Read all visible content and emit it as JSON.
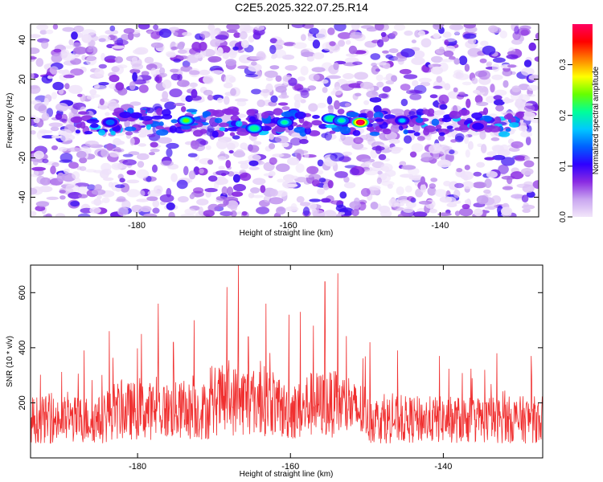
{
  "figure": {
    "title": "C2E5.2025.322.07.25.R14"
  },
  "chart_data": [
    {
      "type": "heatmap",
      "title": "C2E5.2025.322.07.25.R14",
      "xlabel": "Height of straight line (km)",
      "ylabel": "Frequency (Hz)",
      "xlim": [
        -194,
        -127
      ],
      "ylim": [
        -50,
        48
      ],
      "x_ticks": [
        -180,
        -160,
        -140
      ],
      "y_ticks": [
        -40,
        -20,
        0,
        20,
        40
      ],
      "colorbar": {
        "label": "Normalized spectral amplitude",
        "range": [
          0,
          0.38
        ],
        "ticks": [
          0.0,
          0.1,
          0.2,
          0.3
        ],
        "colormap": [
          "#f2e6fa",
          "#c9a6f0",
          "#8a2be2",
          "#2e00ff",
          "#0060ff",
          "#00c8ff",
          "#00ff99",
          "#66ff00",
          "#ffff00",
          "#ff8000",
          "#ff0000",
          "#ff0060"
        ]
      },
      "ridge": {
        "center_frequency": -2,
        "x_range": [
          -188,
          -129
        ],
        "hotspots": [
          {
            "x": -150.5,
            "y": -2,
            "value": 0.38
          },
          {
            "x": -173.5,
            "y": -1,
            "value": 0.24
          },
          {
            "x": -164.5,
            "y": -5,
            "value": 0.22
          },
          {
            "x": -160.5,
            "y": -2,
            "value": 0.2
          },
          {
            "x": -154.5,
            "y": 0,
            "value": 0.22
          },
          {
            "x": -153.0,
            "y": -1,
            "value": 0.21
          },
          {
            "x": -145.0,
            "y": -1,
            "value": 0.16
          },
          {
            "x": -183.5,
            "y": -2,
            "value": 0.15
          },
          {
            "x": -135.0,
            "y": -4,
            "value": 0.12
          }
        ]
      }
    },
    {
      "type": "line",
      "xlabel": "Height of straight line (km)",
      "ylabel": "SNR (10 * v/v)",
      "xlim": [
        -194,
        -127
      ],
      "ylim": [
        0,
        700
      ],
      "x_ticks": [
        -180,
        -160,
        -140
      ],
      "y_ticks": [
        200,
        400,
        600
      ],
      "color": "#f03030",
      "baseline": 150,
      "peaks": [
        {
          "x": -166.8,
          "y": 700
        },
        {
          "x": -153.8,
          "y": 670
        },
        {
          "x": -155.5,
          "y": 640
        },
        {
          "x": -168.3,
          "y": 620
        },
        {
          "x": -177.3,
          "y": 560
        },
        {
          "x": -163.2,
          "y": 560
        },
        {
          "x": -158.7,
          "y": 530
        },
        {
          "x": -160.2,
          "y": 520
        },
        {
          "x": -172.6,
          "y": 500
        },
        {
          "x": -157.0,
          "y": 480
        },
        {
          "x": -183.7,
          "y": 460
        },
        {
          "x": -179.5,
          "y": 450
        },
        {
          "x": -175.3,
          "y": 420
        },
        {
          "x": -149.6,
          "y": 420
        },
        {
          "x": -165.5,
          "y": 440
        },
        {
          "x": -146.0,
          "y": 390
        },
        {
          "x": -140.5,
          "y": 370
        },
        {
          "x": -133.0,
          "y": 380
        },
        {
          "x": -128.5,
          "y": 370
        },
        {
          "x": -187.0,
          "y": 390
        }
      ]
    }
  ]
}
